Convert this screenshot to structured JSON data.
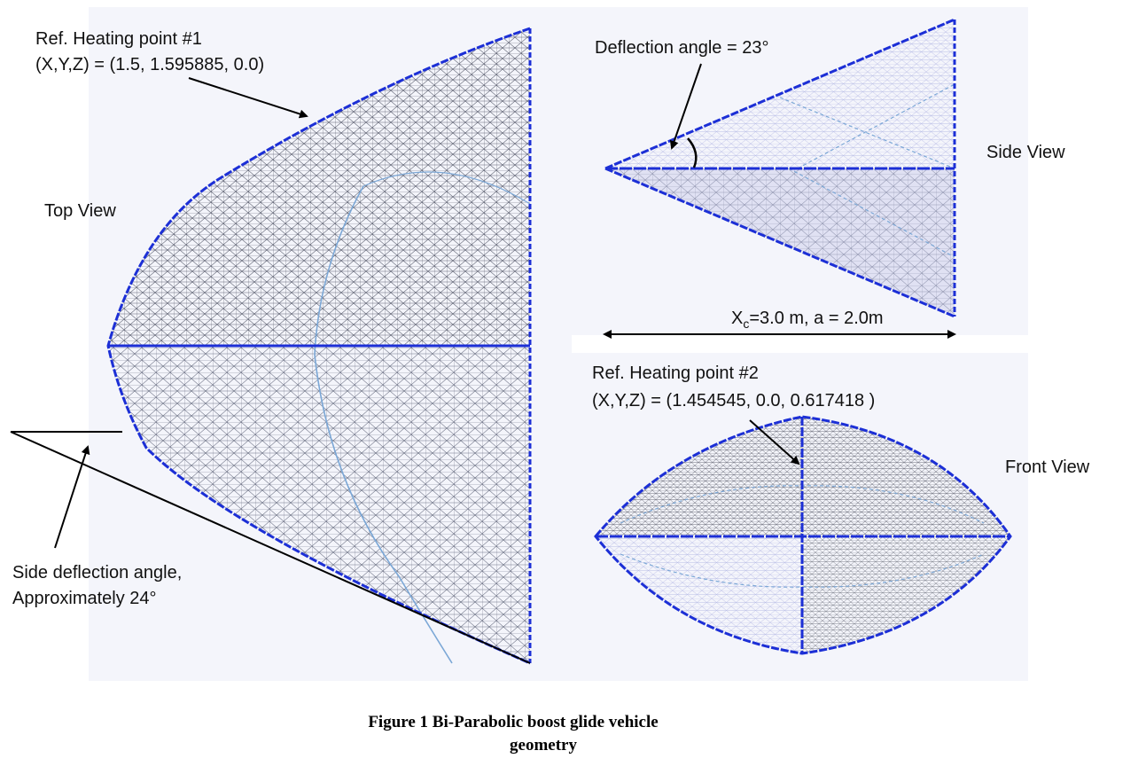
{
  "colors": {
    "edge_blue": "#1c2fd6",
    "mesh_gray": "#5f6373",
    "mesh_light": "#b9bde6",
    "contour_blue": "#7ba7d6",
    "panel_bg": "#f4f5fb",
    "text": "#111111"
  },
  "top_view": {
    "title": "Top View",
    "ref_point_title": "Ref. Heating point #1",
    "ref_point_coords": "(X,Y,Z) = (1.5, 1.595885, 0.0)",
    "side_angle_line1": "Side deflection angle,",
    "side_angle_line2": "Approximately 24°"
  },
  "side_view": {
    "title": "Side View",
    "angle_label": "Deflection angle = 23°",
    "dim_prefix": "X",
    "dim_sub": "c",
    "dim_rest": "=3.0 m, a = 2.0m"
  },
  "front_view": {
    "title": "Front View",
    "ref_point_title": "Ref. Heating point #2",
    "ref_point_coords": "(X,Y,Z) = (1.454545, 0.0, 0.617418 )"
  },
  "caption": {
    "line1": "Figure 1 Bi-Parabolic boost glide vehicle",
    "line2": "geometry"
  }
}
